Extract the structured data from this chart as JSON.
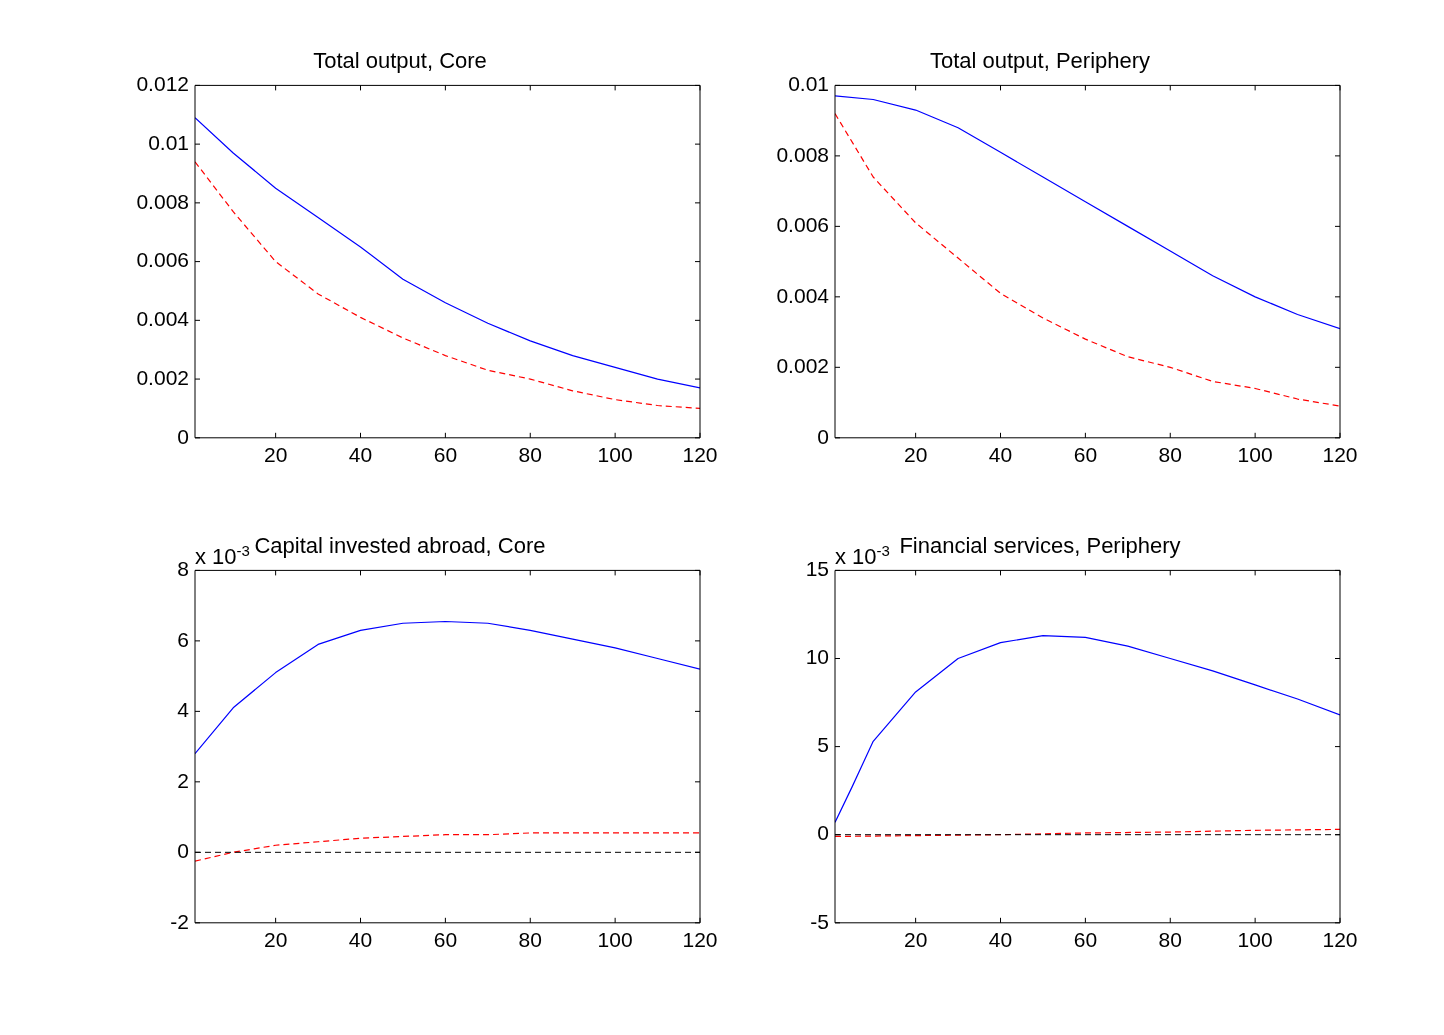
{
  "chart_data": [
    {
      "type": "line",
      "title": "Total output, Core",
      "xlim": [
        1,
        120
      ],
      "xticks": [
        20,
        40,
        60,
        80,
        100,
        120
      ],
      "ylim": [
        0,
        0.012
      ],
      "yticks": [
        0,
        0.002,
        0.004,
        0.006,
        0.008,
        0.01,
        0.012
      ],
      "grid": false,
      "legend": false,
      "marker": "none",
      "series": [
        {
          "color": "#0000ff",
          "line_style": "solid",
          "x": [
            1,
            10,
            20,
            30,
            40,
            50,
            60,
            70,
            80,
            90,
            100,
            110,
            120
          ],
          "values": [
            0.0109,
            0.0097,
            0.0085,
            0.0075,
            0.0065,
            0.0054,
            0.0046,
            0.0039,
            0.0033,
            0.0028,
            0.0024,
            0.002,
            0.0017
          ]
        },
        {
          "color": "#ff0000",
          "line_style": "dashed",
          "x": [
            1,
            10,
            20,
            30,
            40,
            50,
            60,
            70,
            80,
            90,
            100,
            110,
            120
          ],
          "values": [
            0.0094,
            0.0077,
            0.006,
            0.0049,
            0.0041,
            0.0034,
            0.0028,
            0.0023,
            0.002,
            0.0016,
            0.0013,
            0.0011,
            0.001
          ]
        }
      ]
    },
    {
      "type": "line",
      "title": "Total output, Periphery",
      "xlim": [
        1,
        120
      ],
      "xticks": [
        20,
        40,
        60,
        80,
        100,
        120
      ],
      "ylim": [
        0,
        0.01
      ],
      "yticks": [
        0,
        0.002,
        0.004,
        0.006,
        0.008,
        0.01
      ],
      "grid": false,
      "legend": false,
      "marker": "none",
      "series": [
        {
          "color": "#0000ff",
          "line_style": "solid",
          "x": [
            1,
            10,
            20,
            30,
            40,
            50,
            60,
            70,
            80,
            90,
            100,
            110,
            120
          ],
          "values": [
            0.0097,
            0.0096,
            0.0093,
            0.0088,
            0.0081,
            0.0074,
            0.0067,
            0.006,
            0.0053,
            0.0046,
            0.004,
            0.0035,
            0.0031
          ]
        },
        {
          "color": "#ff0000",
          "line_style": "dashed",
          "x": [
            1,
            10,
            20,
            30,
            40,
            50,
            60,
            70,
            80,
            90,
            100,
            110,
            120
          ],
          "values": [
            0.0092,
            0.0074,
            0.0061,
            0.0051,
            0.0041,
            0.0034,
            0.0028,
            0.0023,
            0.002,
            0.0016,
            0.0014,
            0.0011,
            0.0009
          ]
        }
      ]
    },
    {
      "type": "line",
      "title": "Capital invested abroad, Core",
      "annotations": [
        "x 10$^{-3}$"
      ],
      "xlim": [
        1,
        120
      ],
      "xticks": [
        20,
        40,
        60,
        80,
        100,
        120
      ],
      "ylim": [
        -2,
        8
      ],
      "yticks": [
        -2,
        0,
        2,
        4,
        6,
        8
      ],
      "grid": false,
      "legend": false,
      "marker": "none",
      "ref_lines": [
        {
          "axis": "y",
          "value": 0,
          "color": "#000000",
          "line_style": "dashed"
        }
      ],
      "series": [
        {
          "color": "#0000ff",
          "line_style": "solid",
          "x": [
            1,
            10,
            20,
            30,
            40,
            50,
            60,
            70,
            80,
            90,
            100,
            110,
            120
          ],
          "values": [
            2.8,
            4.1,
            5.1,
            5.9,
            6.3,
            6.5,
            6.55,
            6.5,
            6.3,
            6.05,
            5.8,
            5.5,
            5.2
          ]
        },
        {
          "color": "#ff0000",
          "line_style": "dashed",
          "x": [
            1,
            10,
            20,
            30,
            40,
            50,
            60,
            70,
            80,
            100,
            120
          ],
          "values": [
            -0.25,
            0,
            0.2,
            0.3,
            0.4,
            0.45,
            0.5,
            0.5,
            0.55,
            0.55,
            0.55
          ]
        }
      ]
    },
    {
      "type": "line",
      "title": "Financial services, Periphery",
      "annotations": [
        "x 10$^{-3}$"
      ],
      "xlim": [
        1,
        120
      ],
      "xticks": [
        20,
        40,
        60,
        80,
        100,
        120
      ],
      "ylim": [
        -5,
        15
      ],
      "yticks": [
        -5,
        0,
        5,
        10,
        15
      ],
      "grid": false,
      "legend": false,
      "marker": "none",
      "ref_lines": [
        {
          "axis": "y",
          "value": 0,
          "color": "#000000",
          "line_style": "dashed"
        }
      ],
      "series": [
        {
          "color": "#0000ff",
          "line_style": "solid",
          "x": [
            1,
            5,
            10,
            20,
            30,
            40,
            50,
            60,
            70,
            80,
            90,
            100,
            110,
            120
          ],
          "values": [
            0.7,
            2.7,
            5.3,
            8.1,
            10,
            10.9,
            11.3,
            11.2,
            10.7,
            10,
            9.3,
            8.5,
            7.7,
            6.8
          ]
        },
        {
          "color": "#ff0000",
          "line_style": "dashed",
          "x": [
            1,
            40,
            60,
            80,
            100,
            120
          ],
          "values": [
            -0.1,
            0,
            0.1,
            0.15,
            0.25,
            0.3
          ]
        }
      ]
    }
  ]
}
